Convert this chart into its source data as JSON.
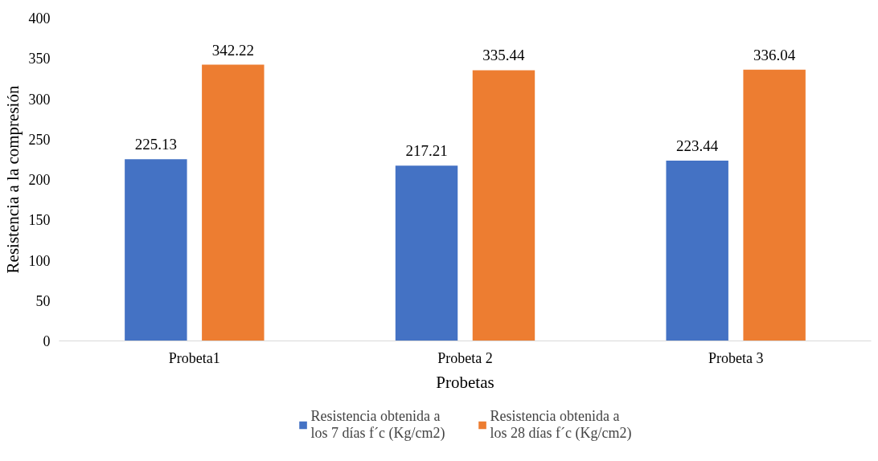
{
  "chart_data": {
    "type": "bar",
    "xlabel": "Probetas",
    "ylabel": "Resistencia a la compresión",
    "categories": [
      "Probeta1",
      "Probeta 2",
      "Probeta 3"
    ],
    "series": [
      {
        "name": "Resistencia obtenida a los 7 días f´c (Kg/cm2)",
        "color": "#4472c4",
        "values": [
          225.13,
          217.21,
          223.44
        ]
      },
      {
        "name": "Resistencia obtenida a los 28 días f´c (Kg/cm2)",
        "color": "#ed7d31",
        "values": [
          342.22,
          335.44,
          336.04
        ]
      }
    ],
    "ylim": [
      0,
      400
    ],
    "yticks": [
      0,
      50,
      100,
      150,
      200,
      250,
      300,
      350,
      400
    ],
    "data_labels": true,
    "grid": false,
    "legend": "bottom"
  }
}
